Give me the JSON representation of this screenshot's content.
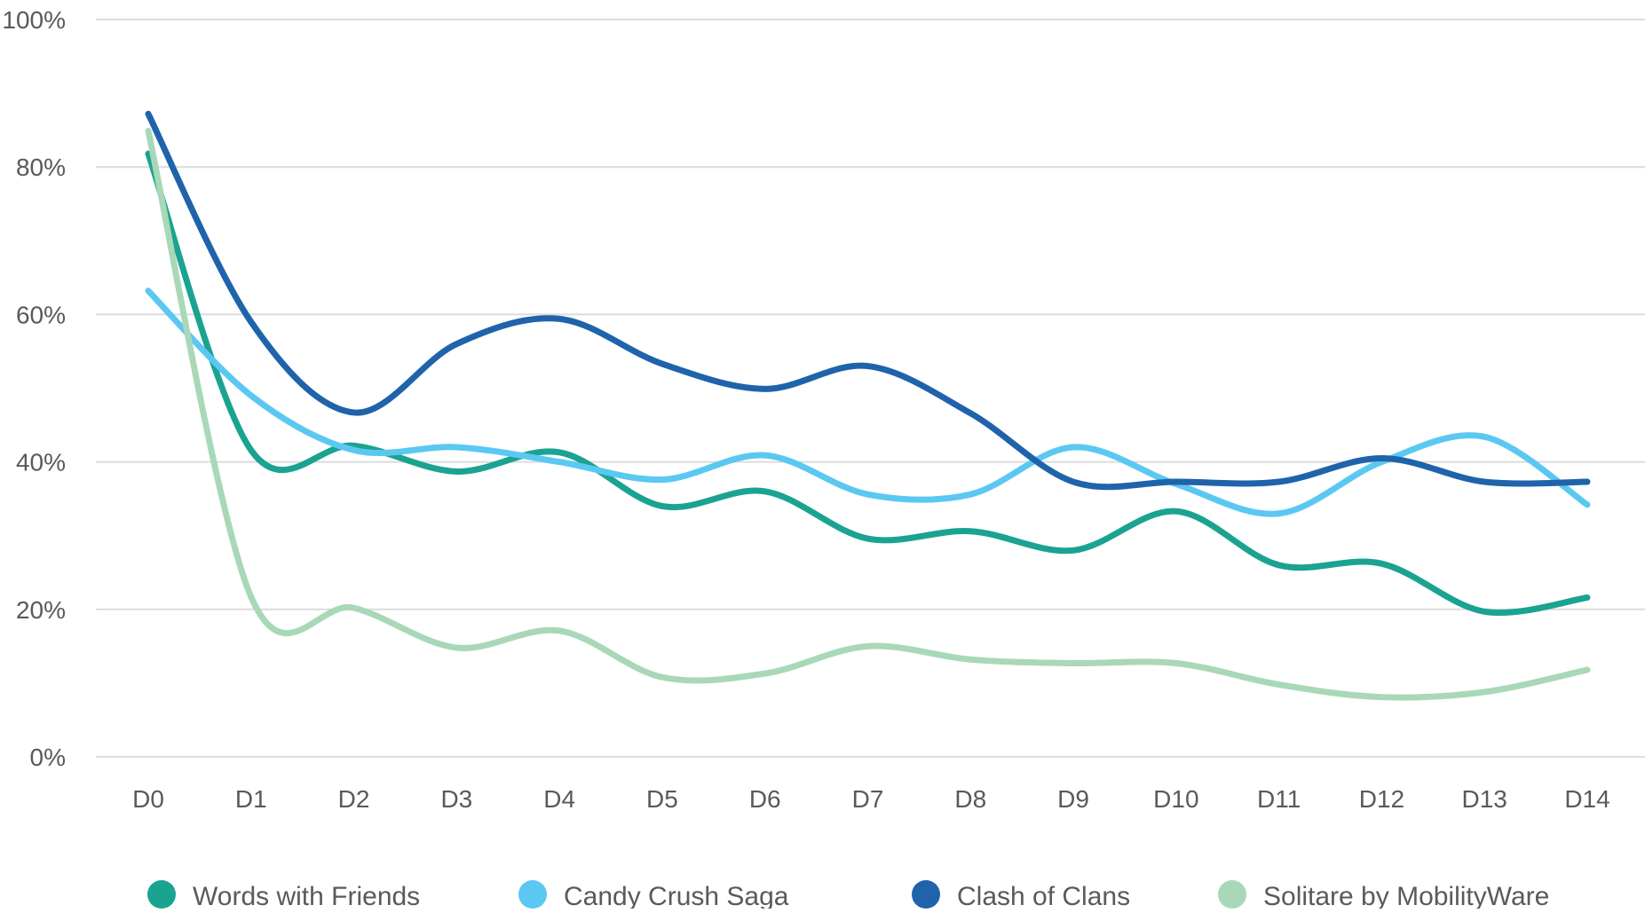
{
  "chart_data": {
    "type": "line",
    "title": "",
    "xlabel": "",
    "ylabel": "",
    "ylim": [
      0,
      100
    ],
    "yticks": [
      "0%",
      "20%",
      "40%",
      "60%",
      "80%",
      "100%"
    ],
    "ytick_values": [
      0,
      20,
      40,
      60,
      80,
      100
    ],
    "grid": true,
    "smooth": true,
    "legend_position": "bottom",
    "categories": [
      "D0",
      "D1",
      "D2",
      "D3",
      "D4",
      "D5",
      "D6",
      "D7",
      "D8",
      "D9",
      "D10",
      "D11",
      "D12",
      "D13",
      "D14"
    ],
    "series": [
      {
        "name": "Words with Friends",
        "color": "#1ba391",
        "values": [
          81.8,
          41.6,
          42.2,
          38.7,
          41.3,
          34.0,
          36.0,
          29.6,
          30.6,
          28.0,
          33.3,
          26.0,
          26.2,
          19.7,
          21.6
        ]
      },
      {
        "name": "Candy Crush Saga",
        "color": "#5bc8f2",
        "values": [
          63.2,
          49.0,
          41.6,
          42.0,
          40.0,
          37.6,
          40.9,
          35.6,
          35.6,
          42.0,
          37.0,
          33.0,
          40.0,
          43.4,
          34.2
        ]
      },
      {
        "name": "Clash of Clans",
        "color": "#1f63ab",
        "values": [
          87.2,
          59.0,
          46.7,
          56.0,
          59.4,
          53.3,
          49.9,
          53.0,
          46.6,
          37.3,
          37.3,
          37.3,
          40.5,
          37.3,
          37.3
        ]
      },
      {
        "name": "Solitare by MobilityWare",
        "color": "#a8d8b8",
        "values": [
          84.9,
          21.7,
          20.2,
          14.8,
          17.1,
          10.8,
          11.3,
          15.0,
          13.2,
          12.7,
          12.7,
          9.8,
          8.1,
          8.8,
          11.8
        ]
      }
    ]
  }
}
